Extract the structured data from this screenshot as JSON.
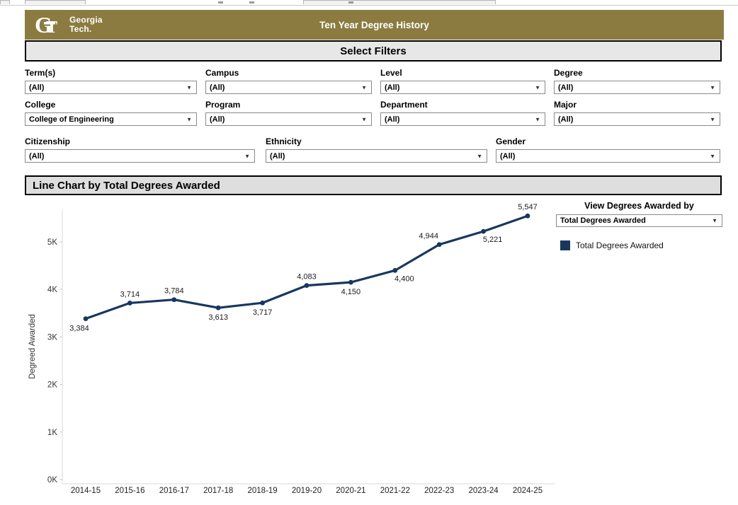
{
  "header": {
    "title": "Ten Year Degree History",
    "logo": {
      "mark": "GT",
      "wordmark_line1": "Georgia",
      "wordmark_line2": "Tech."
    },
    "bg_color": "#8B7B40"
  },
  "filters": {
    "section_title": "Select Filters",
    "fields": [
      {
        "label": "Term(s)",
        "value": "(All)"
      },
      {
        "label": "Campus",
        "value": "(All)"
      },
      {
        "label": "Level",
        "value": "(All)"
      },
      {
        "label": "Degree",
        "value": "(All)"
      },
      {
        "label": "College",
        "value": "College of Engineering"
      },
      {
        "label": "Program",
        "value": "(All)"
      },
      {
        "label": "Department",
        "value": "(All)"
      },
      {
        "label": "Major",
        "value": "(All)"
      },
      {
        "label": "Citizenship",
        "value": "(All)"
      },
      {
        "label": "Ethnicity",
        "value": "(All)"
      },
      {
        "label": "Gender",
        "value": "(All)"
      }
    ]
  },
  "chart_section": {
    "title": "Line Chart by Total Degrees Awarded"
  },
  "view_panel": {
    "heading": "View Degrees Awarded by",
    "dropdown_value": "Total Degrees Awarded",
    "legend": [
      {
        "label": "Total Degrees Awarded",
        "color": "#17375E"
      }
    ]
  },
  "chart_data": {
    "type": "line",
    "title": "Line Chart by Total Degrees Awarded",
    "categories": [
      "2014-15",
      "2015-16",
      "2016-17",
      "2017-18",
      "2018-19",
      "2019-20",
      "2020-21",
      "2021-22",
      "2022-23",
      "2023-24",
      "2024-25"
    ],
    "series": [
      {
        "name": "Total Degrees Awarded",
        "color": "#17375E",
        "values": [
          3384,
          3714,
          3784,
          3613,
          3717,
          4083,
          4150,
          4400,
          4944,
          5221,
          5547
        ],
        "labels": [
          "3,384",
          "3,714",
          "3,784",
          "3,613",
          "3,717",
          "4,083",
          "4,150",
          "4,400",
          "4,944",
          "5,221",
          "5,547"
        ],
        "label_positions": [
          "below-left",
          "above",
          "above",
          "below",
          "below",
          "above",
          "below",
          "below-right",
          "above-left",
          "below-right",
          "above"
        ]
      }
    ],
    "xlabel": "",
    "ylabel": "Degreed Awarded",
    "yticks": [
      "0K",
      "1K",
      "2K",
      "3K",
      "4K",
      "5K"
    ],
    "ylim": [
      0,
      5800
    ],
    "grid": false,
    "legend_position": "right"
  }
}
